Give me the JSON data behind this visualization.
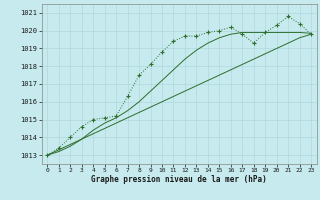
{
  "title": "Graphe pression niveau de la mer (hPa)",
  "bg_color": "#c6eaed",
  "grid_color": "#b0d8dc",
  "line_color": "#2d6e2d",
  "xlim": [
    -0.5,
    23.5
  ],
  "ylim": [
    1012.5,
    1021.5
  ],
  "yticks": [
    1013,
    1014,
    1015,
    1016,
    1017,
    1018,
    1019,
    1020,
    1021
  ],
  "xticks": [
    0,
    1,
    2,
    3,
    4,
    5,
    6,
    7,
    8,
    9,
    10,
    11,
    12,
    13,
    14,
    15,
    16,
    17,
    18,
    19,
    20,
    21,
    22,
    23
  ],
  "series_main": [
    1013.0,
    1013.4,
    1014.0,
    1014.6,
    1015.0,
    1015.1,
    1015.2,
    1016.3,
    1017.5,
    1018.1,
    1018.8,
    1019.4,
    1019.7,
    1019.7,
    1019.9,
    1020.0,
    1020.2,
    1019.8,
    1019.3,
    1019.9,
    1020.3,
    1020.8,
    1020.4,
    1019.8
  ],
  "series_linear": [
    1013.0,
    1013.3,
    1013.6,
    1013.9,
    1014.2,
    1014.5,
    1014.8,
    1015.1,
    1015.4,
    1015.7,
    1016.0,
    1016.3,
    1016.6,
    1016.9,
    1017.2,
    1017.5,
    1017.8,
    1018.1,
    1018.4,
    1018.7,
    1019.0,
    1019.3,
    1019.6,
    1019.8
  ],
  "series_smooth": [
    1013.0,
    1013.2,
    1013.5,
    1013.9,
    1014.4,
    1014.8,
    1015.1,
    1015.5,
    1016.0,
    1016.6,
    1017.2,
    1017.8,
    1018.4,
    1018.9,
    1019.3,
    1019.6,
    1019.8,
    1019.9,
    1019.9,
    1019.9,
    1019.9,
    1019.9,
    1019.9,
    1019.85
  ]
}
